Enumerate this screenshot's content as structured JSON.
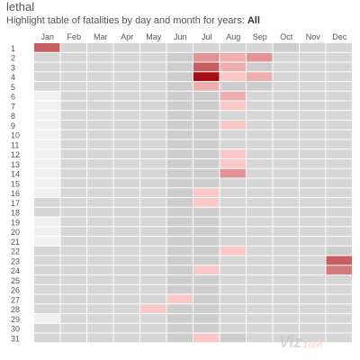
{
  "title": "lethal",
  "subtitle_prefix": "Highlight table of fatalities by day and month for years:",
  "subtitle_value": "All",
  "watermark_text": "Viz",
  "watermark_subtext": "zone",
  "chart_data": {
    "type": "heatmap",
    "x_categories": [
      "Jan",
      "Feb",
      "Mar",
      "Apr",
      "May",
      "Jun",
      "Jul",
      "Aug",
      "Sep",
      "Oct",
      "Nov",
      "Dec"
    ],
    "y_categories": [
      "1",
      "2",
      "3",
      "4",
      "5",
      "6",
      "7",
      "8",
      "9",
      "10",
      "11",
      "12",
      "13",
      "14",
      "15",
      "16",
      "17",
      "18",
      "19",
      "20",
      "21",
      "22",
      "23",
      "24",
      "25",
      "26",
      "27",
      "28",
      "29",
      "30",
      "31"
    ],
    "color_scale": {
      "low": "#f0f0f0",
      "mid": "#d6d6d6",
      "high": "#a50f15"
    },
    "values": [
      [
        7,
        1,
        1,
        1,
        1,
        1,
        1,
        1,
        1,
        2,
        1,
        1
      ],
      [
        1,
        1,
        1,
        1,
        1,
        2,
        5,
        4,
        5,
        1,
        1,
        1
      ],
      [
        1,
        1,
        1,
        1,
        1,
        2,
        7,
        4,
        2,
        1,
        1,
        1
      ],
      [
        1,
        1,
        1,
        1,
        1,
        2,
        10,
        3,
        4,
        1,
        1,
        1
      ],
      [
        1,
        1,
        1,
        1,
        1,
        2,
        4,
        2,
        2,
        1,
        1,
        1
      ],
      [
        0,
        1,
        1,
        1,
        1,
        2,
        2,
        4,
        1,
        1,
        1,
        1
      ],
      [
        0,
        1,
        1,
        1,
        1,
        2,
        2,
        3,
        1,
        1,
        1,
        1
      ],
      [
        0,
        1,
        1,
        1,
        1,
        2,
        2,
        1,
        1,
        1,
        1,
        1
      ],
      [
        0,
        1,
        1,
        1,
        1,
        2,
        2,
        3,
        1,
        1,
        1,
        1
      ],
      [
        0,
        1,
        1,
        1,
        1,
        2,
        2,
        1,
        1,
        1,
        1,
        1
      ],
      [
        0,
        1,
        1,
        1,
        1,
        2,
        2,
        1,
        1,
        1,
        1,
        1
      ],
      [
        0,
        1,
        1,
        1,
        1,
        2,
        2,
        3,
        1,
        1,
        1,
        1
      ],
      [
        0,
        1,
        1,
        1,
        1,
        2,
        2,
        3,
        1,
        1,
        1,
        1
      ],
      [
        0,
        1,
        1,
        1,
        1,
        2,
        2,
        5,
        1,
        1,
        1,
        1
      ],
      [
        0,
        1,
        1,
        1,
        1,
        2,
        2,
        1,
        1,
        1,
        1,
        1
      ],
      [
        0,
        1,
        1,
        1,
        1,
        2,
        3,
        1,
        1,
        1,
        1,
        1
      ],
      [
        1,
        1,
        1,
        1,
        1,
        2,
        3,
        1,
        1,
        1,
        1,
        1
      ],
      [
        1,
        1,
        1,
        1,
        1,
        2,
        2,
        1,
        1,
        1,
        1,
        1
      ],
      [
        0,
        1,
        1,
        1,
        1,
        2,
        2,
        1,
        1,
        1,
        1,
        1
      ],
      [
        0,
        1,
        1,
        1,
        1,
        2,
        2,
        1,
        1,
        1,
        1,
        1
      ],
      [
        0,
        1,
        1,
        1,
        1,
        2,
        2,
        1,
        1,
        1,
        1,
        1
      ],
      [
        1,
        1,
        1,
        1,
        1,
        2,
        2,
        3,
        1,
        1,
        1,
        2
      ],
      [
        1,
        1,
        1,
        1,
        1,
        2,
        2,
        1,
        1,
        1,
        1,
        7
      ],
      [
        1,
        1,
        1,
        1,
        1,
        2,
        3,
        1,
        1,
        1,
        1,
        6
      ],
      [
        1,
        1,
        1,
        1,
        1,
        2,
        2,
        1,
        1,
        1,
        1,
        1
      ],
      [
        1,
        1,
        1,
        1,
        1,
        2,
        2,
        1,
        1,
        1,
        1,
        1
      ],
      [
        1,
        1,
        1,
        1,
        1,
        3,
        2,
        1,
        1,
        1,
        1,
        1
      ],
      [
        1,
        1,
        1,
        1,
        3,
        2,
        2,
        1,
        1,
        1,
        1,
        1
      ],
      [
        0,
        1,
        1,
        1,
        1,
        2,
        2,
        1,
        1,
        1,
        1,
        1
      ],
      [
        1,
        1,
        1,
        1,
        1,
        2,
        2,
        1,
        1,
        1,
        1,
        1
      ],
      [
        1,
        1,
        1,
        1,
        1,
        2,
        3,
        2,
        1,
        1,
        1,
        1
      ]
    ],
    "grid": false,
    "legend": "none"
  }
}
